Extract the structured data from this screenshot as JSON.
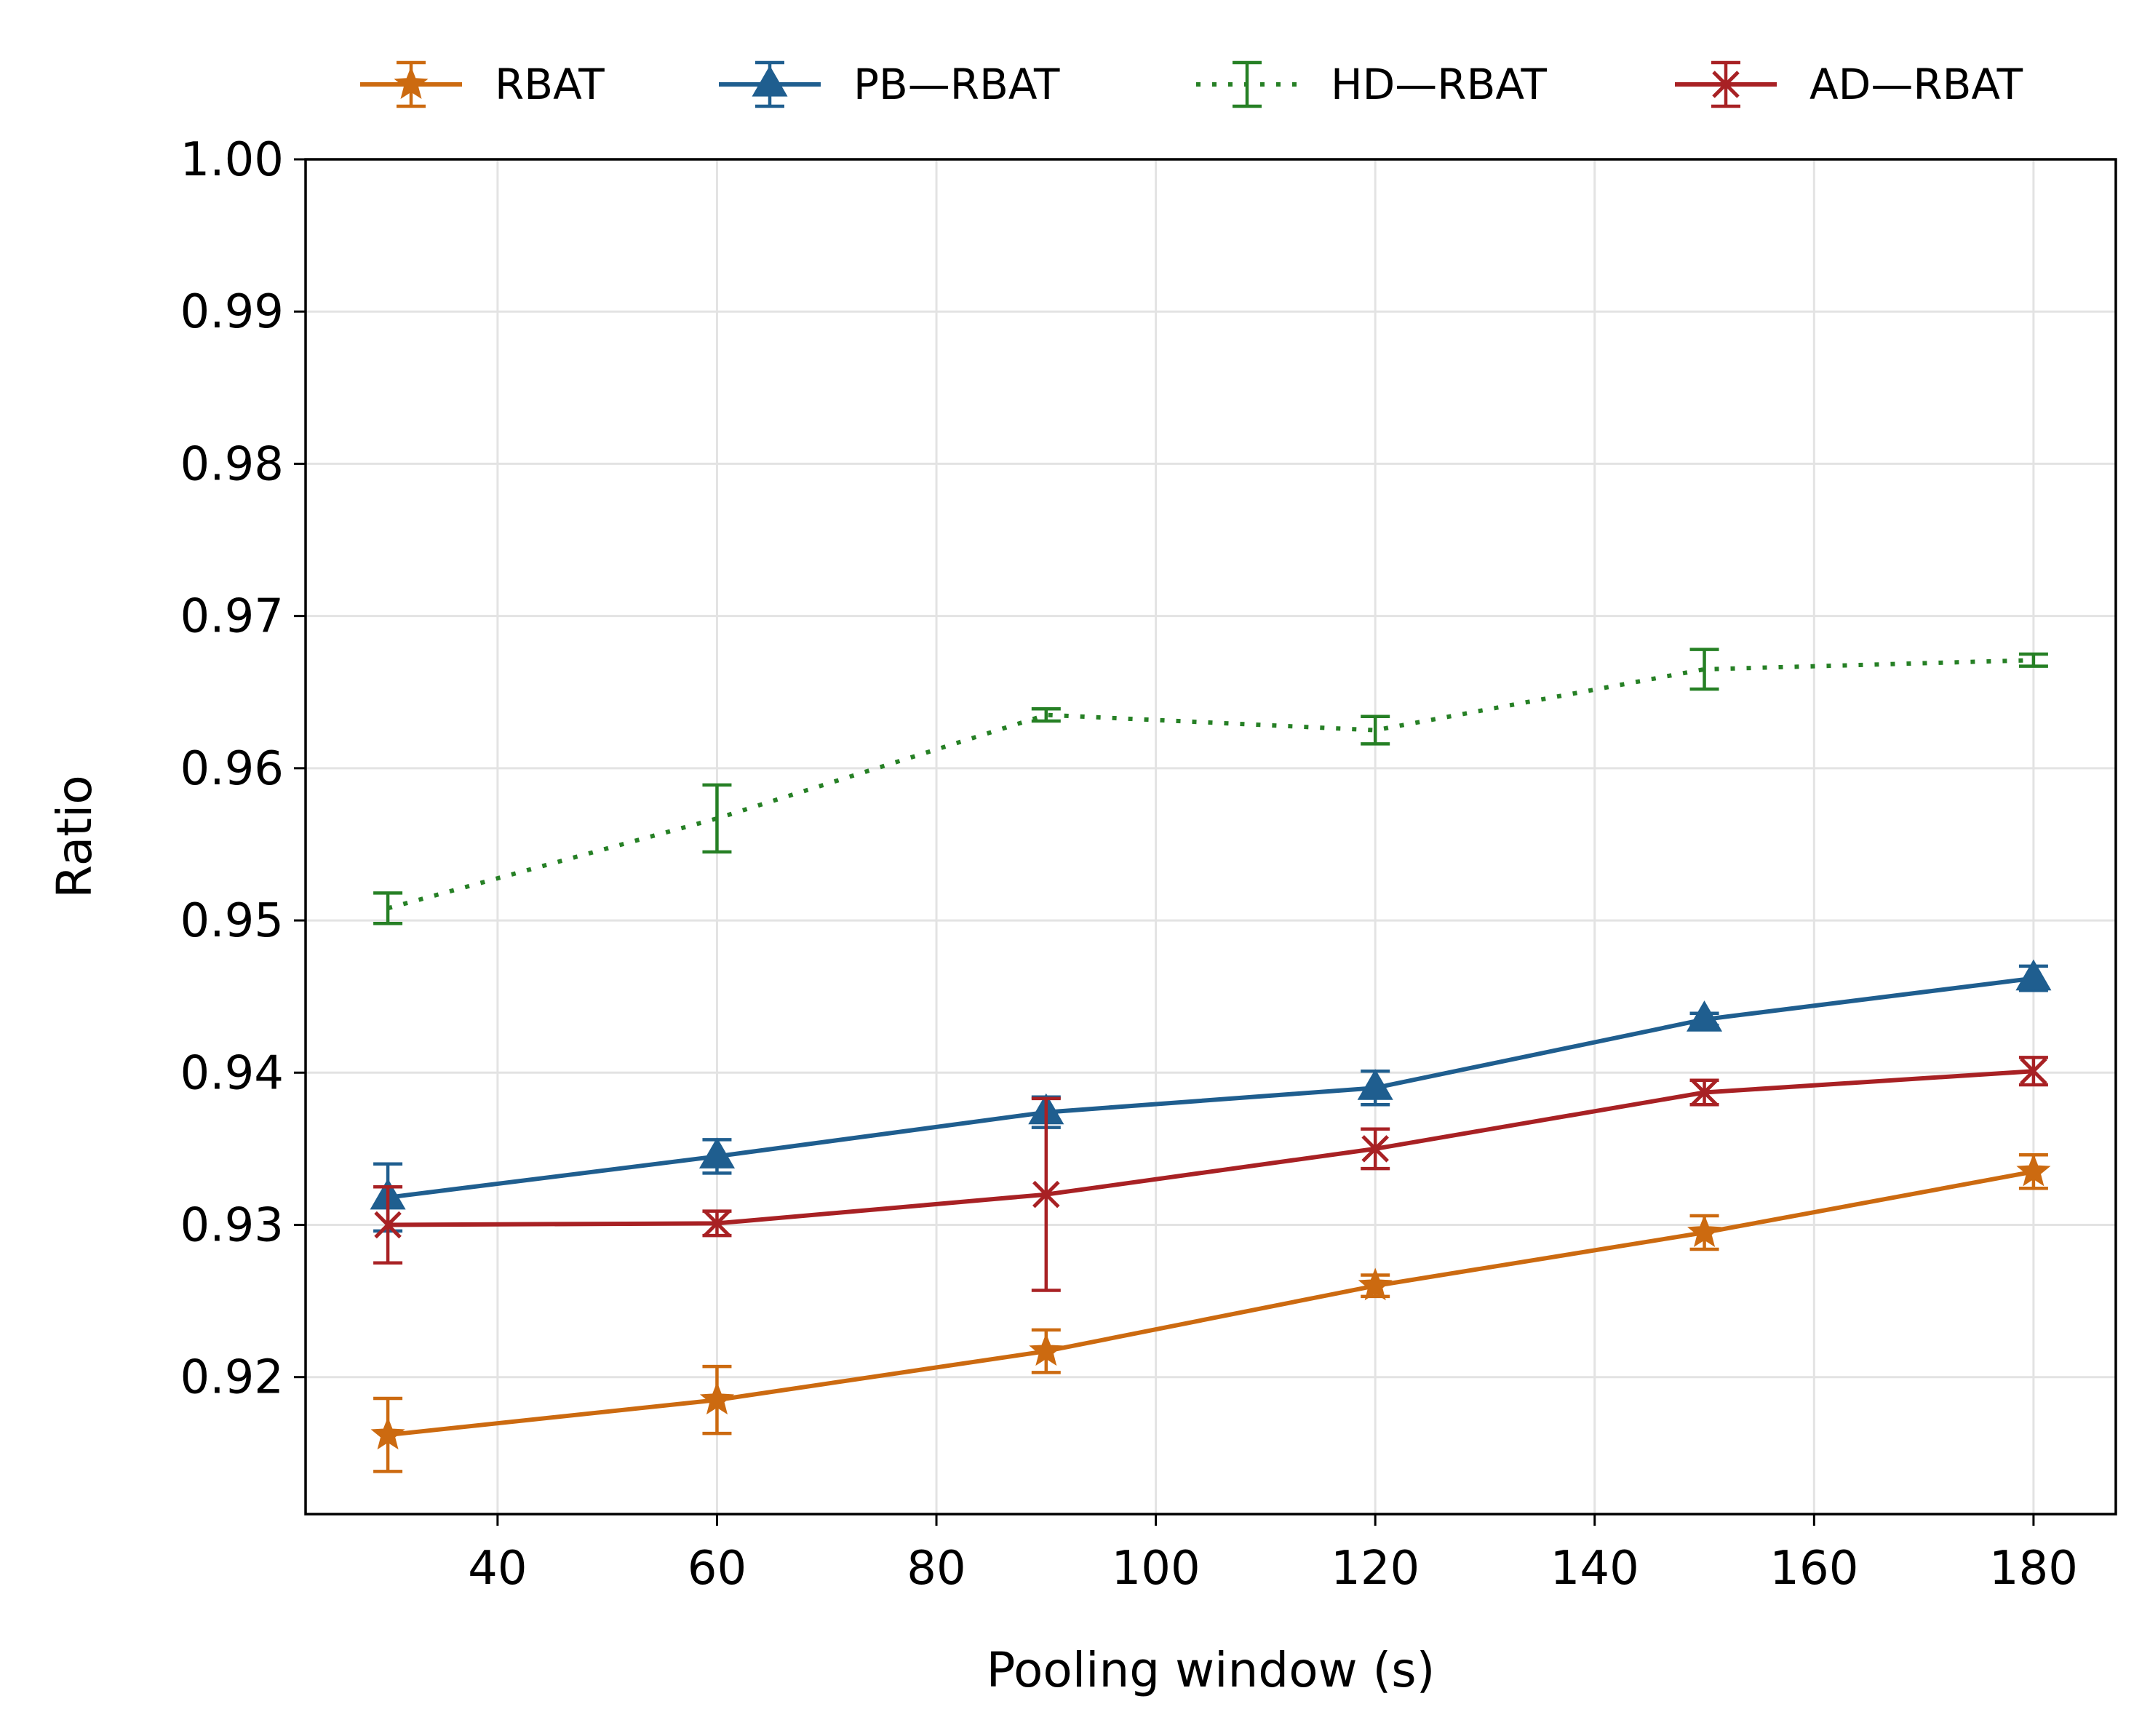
{
  "chart_data": {
    "type": "line",
    "title": "",
    "xlabel": "Pooling window (s)",
    "ylabel": "Ratio",
    "x": [
      30,
      60,
      90,
      120,
      150,
      180
    ],
    "xlim": [
      22.5,
      187.5
    ],
    "ylim": [
      0.911,
      1.0
    ],
    "xticks": [
      40,
      60,
      80,
      100,
      120,
      140,
      160,
      180
    ],
    "yticks": [
      0.92,
      0.93,
      0.94,
      0.95,
      0.96,
      0.97,
      0.98,
      0.99,
      1.0
    ],
    "xtick_labels": [
      "40",
      "60",
      "80",
      "100",
      "120",
      "140",
      "160",
      "180"
    ],
    "ytick_labels": [
      "0.92",
      "0.93",
      "0.94",
      "0.95",
      "0.96",
      "0.97",
      "0.98",
      "0.99",
      "1.00"
    ],
    "grid": true,
    "legend_position": "top",
    "series": [
      {
        "name": "RBAT",
        "color": "#cc6a10",
        "marker": "star",
        "linestyle": "solid",
        "values": [
          0.9162,
          0.9185,
          0.9217,
          0.926,
          0.9295,
          0.9335
        ],
        "errors": [
          0.0024,
          0.0022,
          0.0014,
          0.0007,
          0.0011,
          0.0011
        ]
      },
      {
        "name": "PB—RBAT",
        "color": "#1f5e8f",
        "marker": "triangle",
        "linestyle": "solid",
        "values": [
          0.9318,
          0.9345,
          0.9374,
          0.939,
          0.9435,
          0.9462
        ],
        "errors": [
          0.0022,
          0.0011,
          0.001,
          0.0011,
          0.0004,
          0.0008
        ]
      },
      {
        "name": "HD—RBAT",
        "color": "#268025",
        "marker": "none",
        "linestyle": "dotted",
        "values": [
          0.9508,
          0.9567,
          0.9635,
          0.9625,
          0.9665,
          0.9671
        ],
        "errors": [
          0.001,
          0.0022,
          0.0004,
          0.0009,
          0.0013,
          0.0004
        ]
      },
      {
        "name": "AD—RBAT",
        "color": "#a82124",
        "marker": "x",
        "linestyle": "solid",
        "values": [
          0.93,
          0.9301,
          0.932,
          0.935,
          0.9387,
          0.9401
        ],
        "errors": [
          0.0025,
          0.0008,
          0.0063,
          0.0013,
          0.0008,
          0.0009
        ]
      }
    ]
  }
}
